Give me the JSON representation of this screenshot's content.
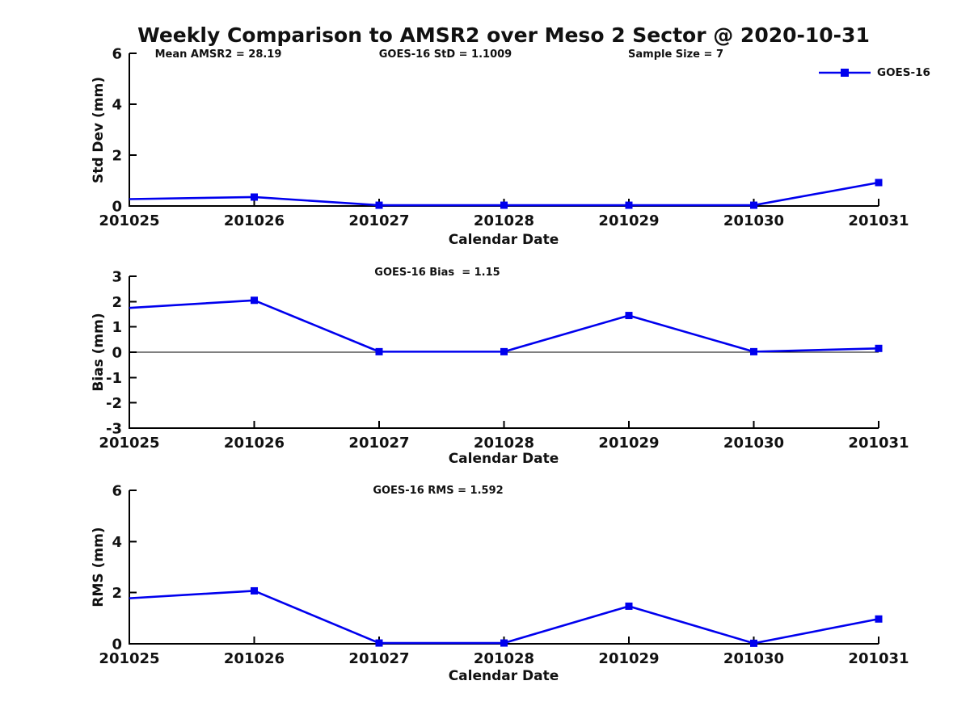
{
  "title": "Weekly Comparison to AMSR2 over Meso 2 Sector @ 2020-10-31",
  "legend": {
    "label": "GOES-16",
    "marker": "square",
    "color": "#0000EE"
  },
  "colors": {
    "series": "#0000EE",
    "axis": "#000000",
    "text": "#111111",
    "background": "#ffffff"
  },
  "chart_data": [
    {
      "id": "std-dev",
      "type": "line",
      "x_categories": [
        "201025",
        "201026",
        "201027",
        "201028",
        "201029",
        "201030",
        "201031"
      ],
      "series": [
        {
          "name": "GOES-16",
          "color": "#0000EE",
          "marker": "square",
          "values": [
            0.27,
            0.35,
            0.03,
            0.03,
            0.03,
            0.03,
            0.92
          ]
        }
      ],
      "annotations": [
        "Mean AMSR2 = 28.19",
        "GOES-16 StD = 1.1009",
        "Sample Size = 7"
      ],
      "xlabel": "Calendar Date",
      "ylabel": "Std Dev (mm)",
      "ylim": [
        0,
        6
      ],
      "yticks": [
        0,
        2,
        4,
        6
      ],
      "grid": false,
      "legend_position": "top-right"
    },
    {
      "id": "bias",
      "type": "line",
      "x_categories": [
        "201025",
        "201026",
        "201027",
        "201028",
        "201029",
        "201030",
        "201031"
      ],
      "series": [
        {
          "name": "GOES-16",
          "color": "#0000EE",
          "marker": "square",
          "values": [
            1.75,
            2.05,
            0.02,
            0.02,
            1.45,
            0.02,
            0.15
          ]
        }
      ],
      "annotations": [
        "GOES-16 Bias  = 1.15"
      ],
      "xlabel": "Calendar Date",
      "ylabel": "Bias (mm)",
      "ylim": [
        -3,
        3
      ],
      "yticks": [
        -3,
        -2,
        -1,
        0,
        1,
        2,
        3
      ],
      "zero_line": true,
      "grid": false
    },
    {
      "id": "rms",
      "type": "line",
      "x_categories": [
        "201025",
        "201026",
        "201027",
        "201028",
        "201029",
        "201030",
        "201031"
      ],
      "series": [
        {
          "name": "GOES-16",
          "color": "#0000EE",
          "marker": "square",
          "values": [
            1.78,
            2.07,
            0.03,
            0.03,
            1.47,
            0.02,
            0.97
          ]
        }
      ],
      "annotations": [
        "GOES-16 RMS = 1.592"
      ],
      "xlabel": "Calendar Date",
      "ylabel": "RMS (mm)",
      "ylim": [
        0,
        6
      ],
      "yticks": [
        0,
        2,
        4,
        6
      ],
      "grid": false
    }
  ]
}
